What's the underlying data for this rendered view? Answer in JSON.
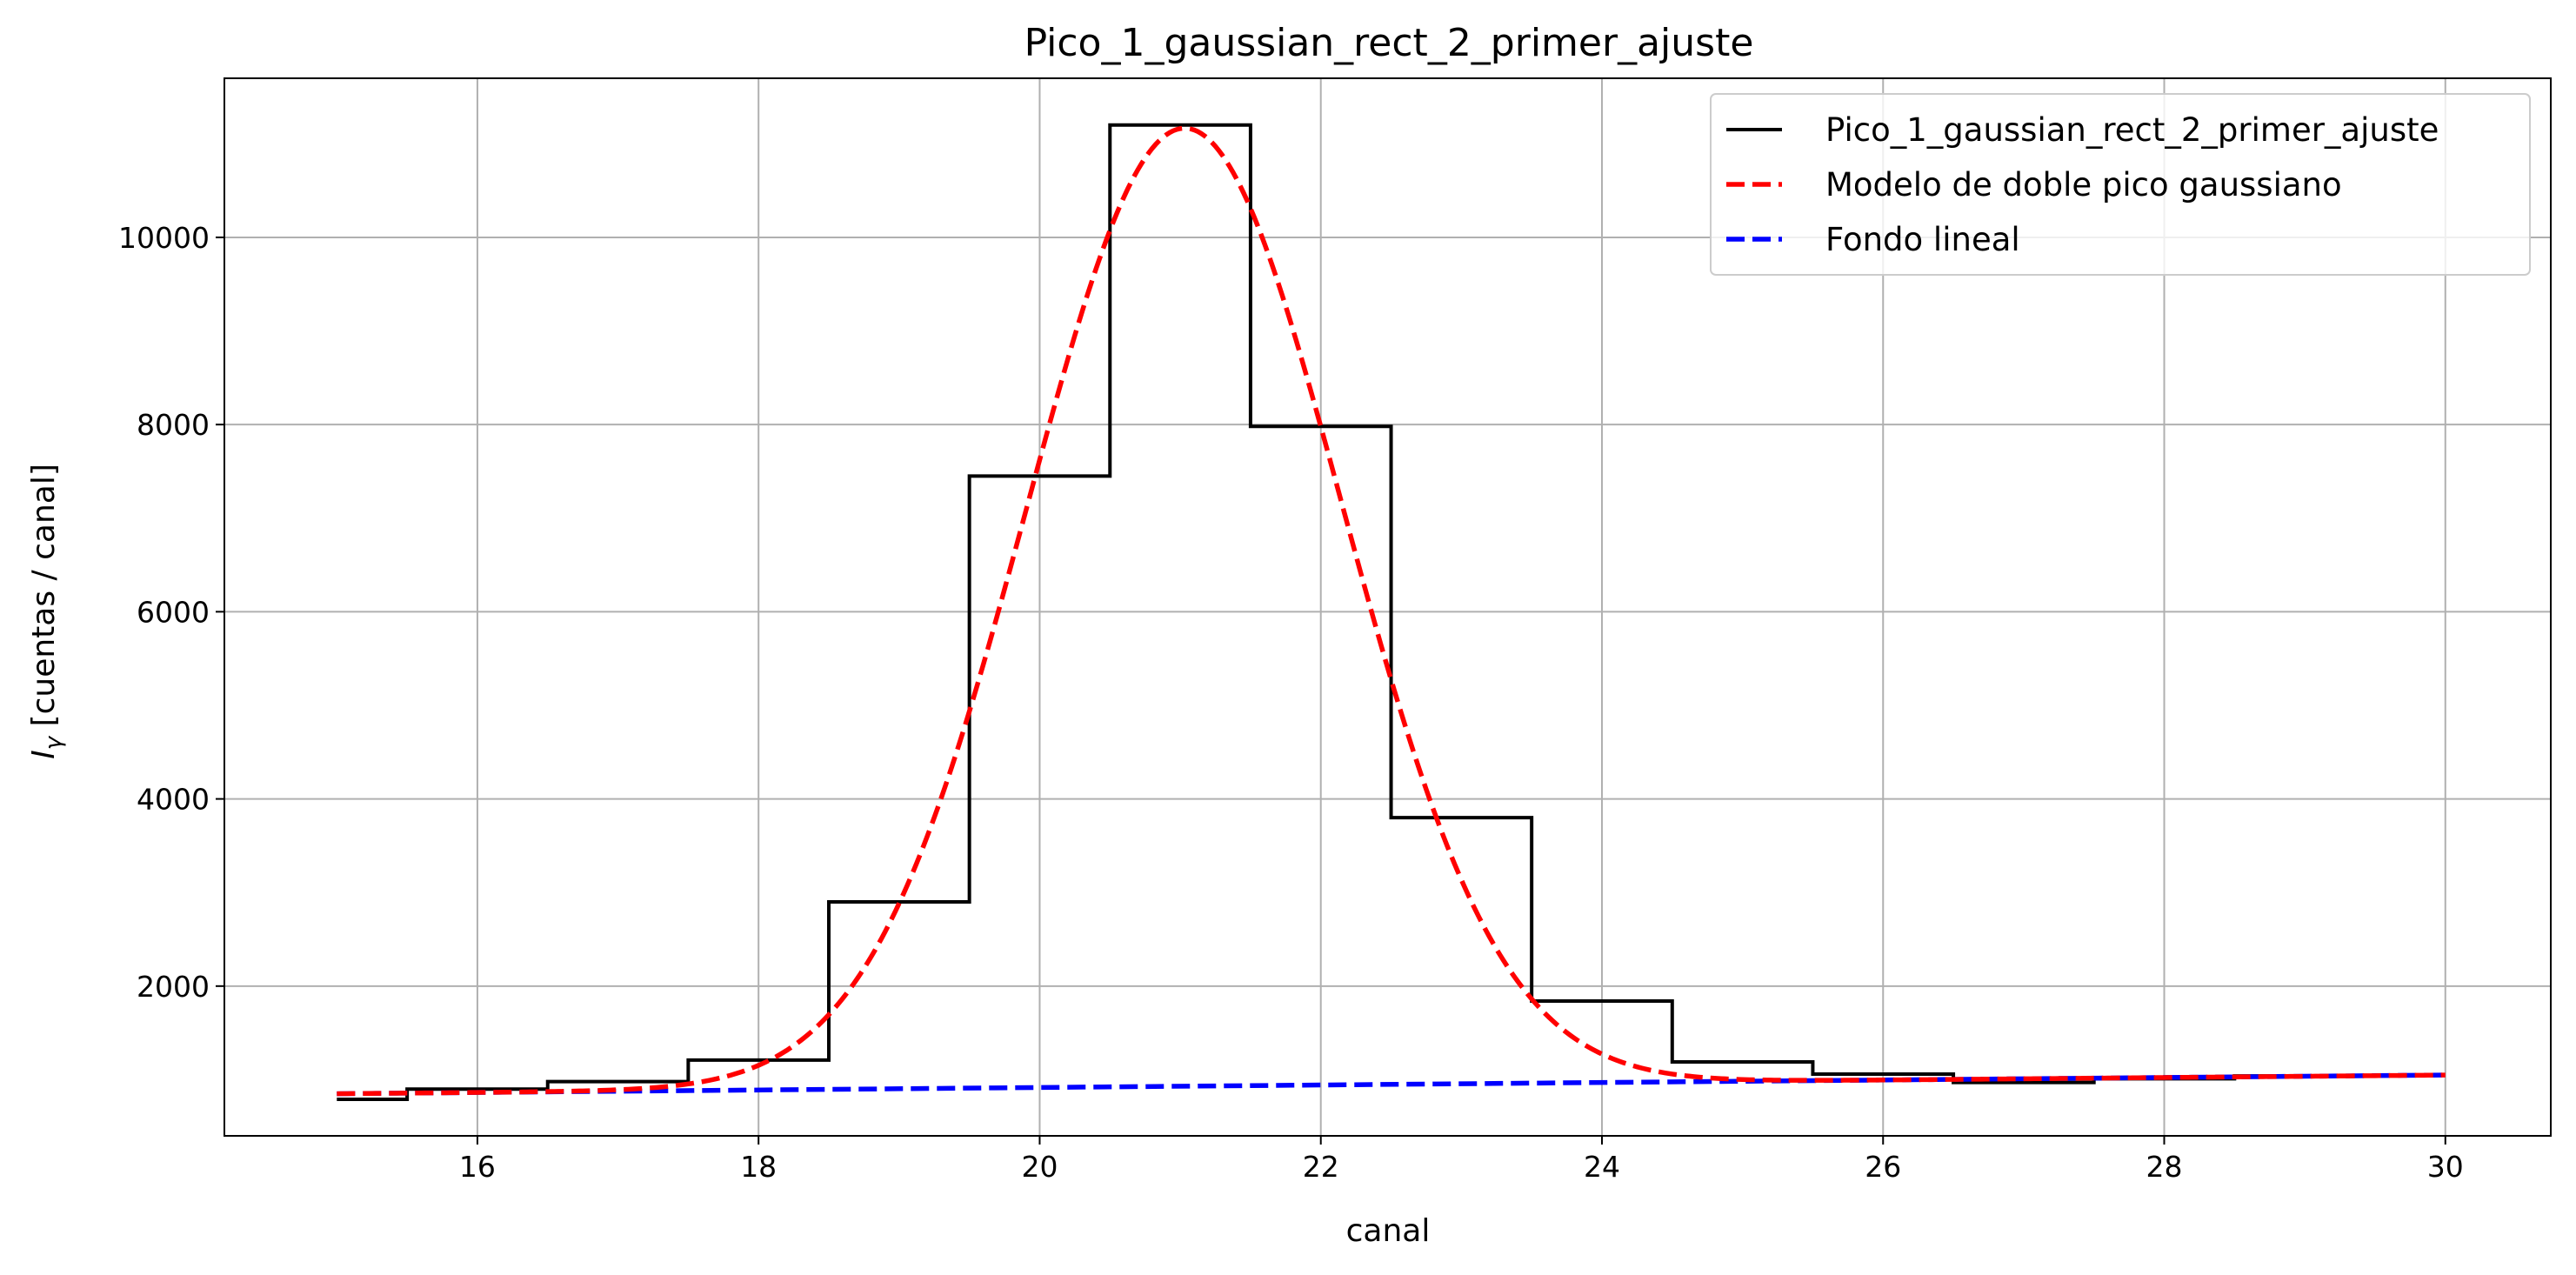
{
  "chart_data": {
    "type": "line",
    "title": "Pico_1_gaussian_rect_2_primer_ajuste",
    "xlabel": "canal",
    "ylabel_main": "I",
    "ylabel_sub": "γ",
    "ylabel_rest": " [cuentas / canal]",
    "xlim": [
      14.2,
      30.75
    ],
    "ylim": [
      400,
      11700
    ],
    "xticks": [
      16,
      18,
      20,
      22,
      24,
      26,
      28,
      30
    ],
    "yticks": [
      2000,
      4000,
      6000,
      8000,
      10000
    ],
    "grid": true,
    "legend_position": "top-right",
    "series": [
      {
        "name": "Pico_1_gaussian_rect_2_primer_ajuste",
        "style": "step",
        "color": "#000000",
        "x": [
          15,
          16,
          17,
          18,
          19,
          20,
          21,
          22,
          23,
          24,
          25,
          26,
          27,
          28,
          29
        ],
        "values": [
          790,
          900,
          980,
          1210,
          2900,
          7450,
          11200,
          7980,
          3800,
          1840,
          1190,
          1060,
          970,
          1010,
          1040
        ],
        "x_end": 29
      },
      {
        "name": "Modelo de doble pico gaussiano",
        "style": "dashed",
        "color": "#ff0000",
        "model": {
          "amplitude": 10236,
          "center": 21.03,
          "sigma": 1.12,
          "background_start": 850,
          "background_slope": 13.3
        },
        "x_range": [
          15,
          30
        ]
      },
      {
        "name": "Fondo lineal",
        "style": "dashed",
        "color": "#0000ff",
        "x": [
          15,
          30
        ],
        "values": [
          850,
          1050
        ]
      }
    ]
  }
}
